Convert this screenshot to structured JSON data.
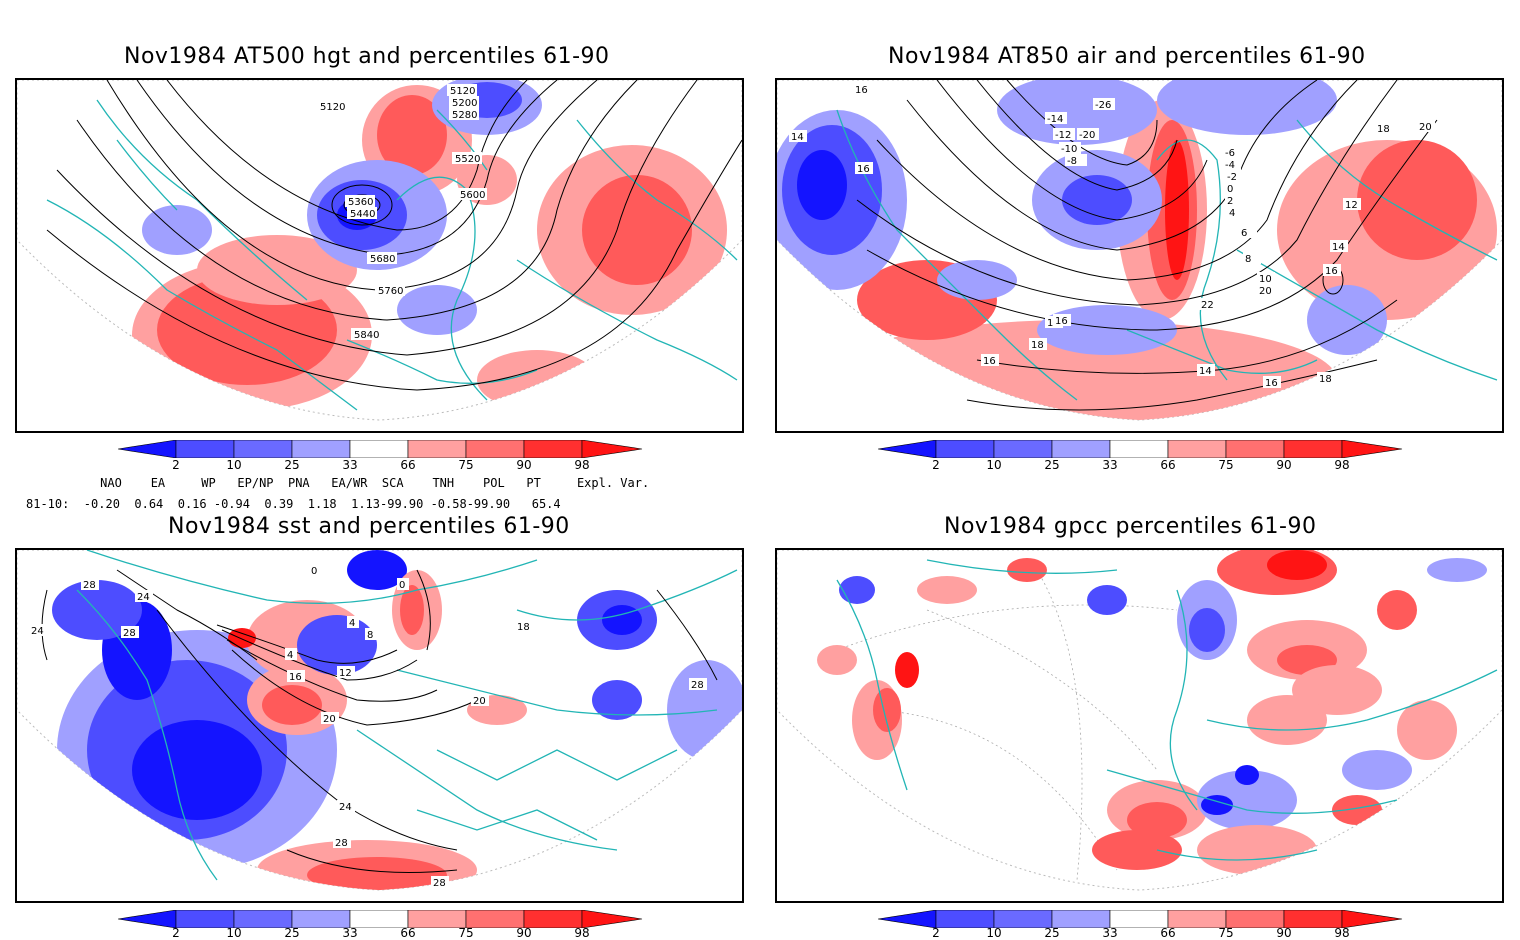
{
  "panels": {
    "tl": {
      "title": "Nov1984 AT500 hgt and percentiles 61-90",
      "contours": [
        "5120",
        "5200",
        "5280",
        "5120",
        "5360",
        "5440",
        "5520",
        "5600",
        "5680",
        "5760",
        "5840"
      ]
    },
    "tr": {
      "title": "Nov1984 AT850 air and percentiles 61-90",
      "contours": [
        "16",
        "14",
        "16",
        "-26",
        "-20",
        "-14",
        "-12",
        "-10",
        "-8",
        "-6",
        "-4",
        "-2",
        "0",
        "2",
        "4",
        "6",
        "8",
        "10",
        "12",
        "14",
        "16",
        "18",
        "20",
        "22",
        "14",
        "16",
        "18",
        "20",
        "18",
        "18",
        "16",
        "16"
      ]
    },
    "bl": {
      "title": "Nov1984 sst and percentiles 61-90",
      "contours": [
        "28",
        "24",
        "28",
        "24",
        "0",
        "0",
        "4",
        "8",
        "4",
        "16",
        "12",
        "20",
        "24",
        "28",
        "28",
        "20",
        "18",
        "28"
      ]
    },
    "br": {
      "title": "Nov1984 gpcc percentiles 61-90",
      "contours": []
    }
  },
  "colorbar": {
    "labels": [
      "2",
      "10",
      "25",
      "33",
      "66",
      "75",
      "90",
      "98"
    ],
    "colors": {
      "deep_blue": "#1414ff",
      "mid_blue": "#4d4dff",
      "light_blue": "#a0a0ff",
      "white": "#ffffff",
      "light_red": "#ffa0a0",
      "mid_red": "#ff5a5a",
      "deep_red": "#ff1414"
    }
  },
  "indices": {
    "header": "     NAO    EA     WP   EP/NP  PNA   EA/WR  SCA    TNH    POL   PT     Expl. Var.",
    "row": "81-10:  -0.20  0.64  0.16 -0.94  0.39  1.18  1.13-99.90 -0.58-99.90   65.4"
  },
  "colors": {
    "coast": "#22b5b5",
    "contour": "#000000",
    "grid": "#999999"
  }
}
